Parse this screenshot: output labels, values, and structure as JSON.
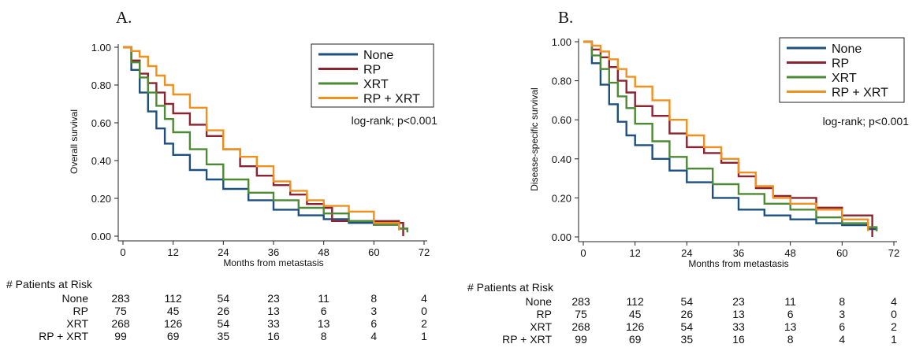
{
  "figure": {
    "panels": [
      {
        "label": "A.",
        "ylabel": "Overall survival",
        "annotation": "log-rank; p<0.001"
      },
      {
        "label": "B.",
        "ylabel": "Disease-specific survival",
        "annotation": "log-rank; p<0.001"
      }
    ],
    "risk_title": "# Patients at Risk"
  },
  "chart_data": [
    {
      "type": "line",
      "title": "A.",
      "xlabel": "Months from metastasis",
      "ylabel": "Overall survival",
      "xlim": [
        0,
        72
      ],
      "ylim": [
        0,
        1
      ],
      "xticks": [
        "0",
        "12",
        "24",
        "36",
        "48",
        "60",
        "72"
      ],
      "yticks": [
        "0.00",
        "0.20",
        "0.40",
        "0.60",
        "0.80",
        "1.00"
      ],
      "grid": false,
      "legend_position": "top-right",
      "annotation": "log-rank; p<0.001",
      "series": [
        {
          "name": "None",
          "color": "#1d4f80",
          "x": [
            0,
            2,
            4,
            6,
            8,
            10,
            12,
            16,
            20,
            24,
            30,
            36,
            42,
            48,
            54,
            60,
            66,
            68
          ],
          "y": [
            1.0,
            0.88,
            0.76,
            0.66,
            0.57,
            0.49,
            0.43,
            0.35,
            0.3,
            0.25,
            0.19,
            0.14,
            0.11,
            0.09,
            0.07,
            0.06,
            0.04,
            0.03
          ]
        },
        {
          "name": "RP",
          "color": "#8b2330",
          "x": [
            0,
            2,
            4,
            6,
            8,
            10,
            12,
            16,
            20,
            24,
            28,
            32,
            36,
            40,
            44,
            48,
            50,
            60,
            66,
            67
          ],
          "y": [
            1.0,
            0.93,
            0.86,
            0.81,
            0.76,
            0.7,
            0.65,
            0.59,
            0.53,
            0.46,
            0.37,
            0.32,
            0.27,
            0.22,
            0.17,
            0.15,
            0.08,
            0.08,
            0.07,
            0.0
          ]
        },
        {
          "name": "XRT",
          "color": "#4d8a34",
          "x": [
            0,
            2,
            4,
            6,
            8,
            10,
            12,
            16,
            20,
            24,
            30,
            36,
            42,
            48,
            54,
            60,
            66,
            68
          ],
          "y": [
            1.0,
            0.92,
            0.84,
            0.76,
            0.69,
            0.62,
            0.55,
            0.46,
            0.38,
            0.3,
            0.23,
            0.19,
            0.15,
            0.12,
            0.08,
            0.06,
            0.04,
            0.02
          ]
        },
        {
          "name": "RP + XRT",
          "color": "#f0901e",
          "x": [
            0,
            2,
            4,
            6,
            8,
            10,
            12,
            16,
            20,
            24,
            28,
            32,
            36,
            40,
            44,
            48,
            54,
            60,
            66
          ],
          "y": [
            1.0,
            0.98,
            0.95,
            0.9,
            0.85,
            0.8,
            0.75,
            0.68,
            0.56,
            0.46,
            0.42,
            0.37,
            0.29,
            0.24,
            0.19,
            0.16,
            0.13,
            0.07,
            0.03
          ]
        }
      ],
      "risk_table": {
        "columns": [
          "0",
          "12",
          "24",
          "36",
          "48",
          "60",
          "72"
        ],
        "rows": [
          {
            "label": "None",
            "values": [
              "283",
              "112",
              "54",
              "23",
              "11",
              "8",
              "4"
            ]
          },
          {
            "label": "RP",
            "values": [
              "75",
              "45",
              "26",
              "13",
              "6",
              "3",
              "0"
            ]
          },
          {
            "label": "XRT",
            "values": [
              "268",
              "126",
              "54",
              "33",
              "13",
              "6",
              "2"
            ]
          },
          {
            "label": "RP + XRT",
            "values": [
              "99",
              "69",
              "35",
              "16",
              "8",
              "4",
              "1"
            ]
          }
        ]
      }
    },
    {
      "type": "line",
      "title": "B.",
      "xlabel": "Months from metastasis",
      "ylabel": "Disease-specific survival",
      "xlim": [
        0,
        72
      ],
      "ylim": [
        0,
        1
      ],
      "xticks": [
        "0",
        "12",
        "24",
        "36",
        "48",
        "60",
        "72"
      ],
      "yticks": [
        "0.00",
        "0.20",
        "0.40",
        "0.60",
        "0.80",
        "1.00"
      ],
      "grid": false,
      "legend_position": "top-right",
      "annotation": "log-rank; p<0.001",
      "series": [
        {
          "name": "None",
          "color": "#1d4f80",
          "x": [
            0,
            2,
            4,
            6,
            8,
            10,
            12,
            16,
            20,
            24,
            30,
            36,
            42,
            48,
            54,
            60,
            66,
            68
          ],
          "y": [
            1.0,
            0.89,
            0.78,
            0.68,
            0.59,
            0.52,
            0.47,
            0.4,
            0.34,
            0.28,
            0.2,
            0.14,
            0.11,
            0.09,
            0.07,
            0.06,
            0.04,
            0.03
          ]
        },
        {
          "name": "RP",
          "color": "#8b2330",
          "x": [
            0,
            2,
            4,
            6,
            8,
            10,
            12,
            16,
            20,
            24,
            28,
            32,
            36,
            40,
            44,
            48,
            54,
            60,
            66,
            67
          ],
          "y": [
            1.0,
            0.96,
            0.92,
            0.87,
            0.8,
            0.74,
            0.67,
            0.62,
            0.53,
            0.46,
            0.43,
            0.38,
            0.31,
            0.25,
            0.21,
            0.2,
            0.15,
            0.11,
            0.11,
            0.0
          ]
        },
        {
          "name": "XRT",
          "color": "#4d8a34",
          "x": [
            0,
            2,
            4,
            6,
            8,
            10,
            12,
            16,
            20,
            24,
            30,
            36,
            42,
            48,
            54,
            60,
            66,
            68
          ],
          "y": [
            1.0,
            0.93,
            0.86,
            0.79,
            0.72,
            0.66,
            0.58,
            0.49,
            0.41,
            0.35,
            0.27,
            0.22,
            0.17,
            0.14,
            0.1,
            0.07,
            0.05,
            0.03
          ]
        },
        {
          "name": "RP + XRT",
          "color": "#f0901e",
          "x": [
            0,
            2,
            4,
            6,
            8,
            10,
            12,
            16,
            20,
            24,
            28,
            32,
            36,
            40,
            44,
            48,
            54,
            60,
            66
          ],
          "y": [
            1.0,
            0.98,
            0.95,
            0.91,
            0.86,
            0.82,
            0.77,
            0.7,
            0.6,
            0.52,
            0.46,
            0.4,
            0.33,
            0.26,
            0.2,
            0.17,
            0.14,
            0.09,
            0.03
          ]
        }
      ],
      "risk_table": {
        "columns": [
          "0",
          "12",
          "24",
          "36",
          "48",
          "60",
          "72"
        ],
        "rows": [
          {
            "label": "None",
            "values": [
              "283",
              "112",
              "54",
              "23",
              "11",
              "8",
              "4"
            ]
          },
          {
            "label": "RP",
            "values": [
              "75",
              "45",
              "26",
              "13",
              "6",
              "3",
              "0"
            ]
          },
          {
            "label": "XRT",
            "values": [
              "268",
              "126",
              "54",
              "33",
              "13",
              "6",
              "2"
            ]
          },
          {
            "label": "RP + XRT",
            "values": [
              "99",
              "69",
              "35",
              "16",
              "8",
              "4",
              "1"
            ]
          }
        ]
      }
    }
  ]
}
